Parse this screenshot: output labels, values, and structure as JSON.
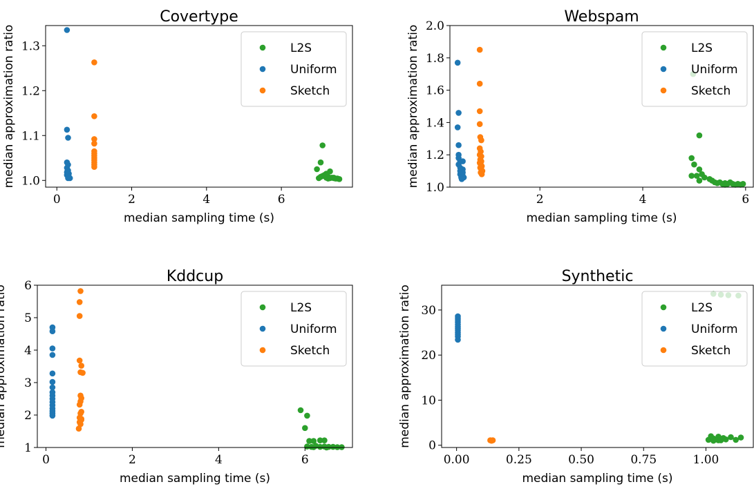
{
  "chart_data": [
    {
      "type": "scatter",
      "title": "Covertype",
      "xlabel": "median sampling time (s)",
      "ylabel": "median approximation ratio",
      "xlim": [
        -0.3,
        7.9
      ],
      "ylim": [
        0.985,
        1.345
      ],
      "xticks": [
        0,
        2,
        4,
        6
      ],
      "yticks": [
        1.0,
        1.1,
        1.2,
        1.3
      ],
      "xtick_labels": [
        "0",
        "2",
        "4",
        "6"
      ],
      "ytick_labels": [
        "1.0",
        "1.1",
        "1.2",
        "1.3"
      ],
      "legend": "top-right",
      "series": [
        {
          "name": "L2S",
          "color": "#2ca02c",
          "points": [
            [
              6.95,
              1.025
            ],
            [
              7.05,
              1.04
            ],
            [
              7.1,
              1.078
            ],
            [
              7.0,
              1.005
            ],
            [
              7.1,
              1.01
            ],
            [
              7.15,
              1.012
            ],
            [
              7.2,
              1.015
            ],
            [
              7.25,
              1.008
            ],
            [
              7.3,
              1.02
            ],
            [
              7.35,
              1.006
            ],
            [
              7.4,
              1.005
            ],
            [
              7.45,
              1.004
            ],
            [
              7.5,
              1.004
            ],
            [
              7.55,
              1.003
            ],
            [
              7.2,
              1.006
            ],
            [
              7.3,
              1.005
            ],
            [
              7.05,
              1.008
            ],
            [
              7.4,
              1.006
            ],
            [
              7.25,
              1.004
            ]
          ]
        },
        {
          "name": "Uniform",
          "color": "#1f77b4",
          "points": [
            [
              0.27,
              1.335
            ],
            [
              0.27,
              1.113
            ],
            [
              0.3,
              1.095
            ],
            [
              0.27,
              1.04
            ],
            [
              0.3,
              1.035
            ],
            [
              0.27,
              1.028
            ],
            [
              0.3,
              1.022
            ],
            [
              0.27,
              1.018
            ],
            [
              0.32,
              1.015
            ],
            [
              0.27,
              1.012
            ],
            [
              0.3,
              1.01
            ],
            [
              0.32,
              1.008
            ],
            [
              0.3,
              1.005
            ],
            [
              0.35,
              1.005
            ],
            [
              0.28,
              1.02
            ]
          ]
        },
        {
          "name": "Sketch",
          "color": "#ff7f0e",
          "points": [
            [
              1.0,
              1.263
            ],
            [
              1.0,
              1.143
            ],
            [
              1.0,
              1.092
            ],
            [
              1.0,
              1.082
            ],
            [
              1.0,
              1.065
            ],
            [
              1.0,
              1.06
            ],
            [
              1.0,
              1.055
            ],
            [
              1.0,
              1.05
            ],
            [
              1.0,
              1.045
            ],
            [
              1.0,
              1.04
            ],
            [
              1.0,
              1.035
            ],
            [
              1.0,
              1.03
            ]
          ]
        }
      ]
    },
    {
      "type": "scatter",
      "title": "Webspam",
      "xlabel": "median sampling time (s)",
      "ylabel": "median approximation ratio",
      "xlim": [
        0.25,
        6.15
      ],
      "ylim": [
        1.0,
        2.0
      ],
      "xticks": [
        2,
        4,
        6
      ],
      "yticks": [
        1.0,
        1.2,
        1.4,
        1.6,
        1.8,
        2.0
      ],
      "xtick_labels": [
        "2",
        "4",
        "6"
      ],
      "ytick_labels": [
        "1.0",
        "1.2",
        "1.4",
        "1.6",
        "1.8",
        "2.0"
      ],
      "legend": "top-right",
      "series": [
        {
          "name": "L2S",
          "color": "#2ca02c",
          "points": [
            [
              4.98,
              1.7
            ],
            [
              4.95,
              1.18
            ],
            [
              5.1,
              1.32
            ],
            [
              5.0,
              1.14
            ],
            [
              4.95,
              1.07
            ],
            [
              5.1,
              1.11
            ],
            [
              5.05,
              1.07
            ],
            [
              5.15,
              1.08
            ],
            [
              5.1,
              1.04
            ],
            [
              5.2,
              1.06
            ],
            [
              5.3,
              1.05
            ],
            [
              5.35,
              1.04
            ],
            [
              5.4,
              1.03
            ],
            [
              5.45,
              1.025
            ],
            [
              5.5,
              1.03
            ],
            [
              5.55,
              1.02
            ],
            [
              5.6,
              1.025
            ],
            [
              5.65,
              1.02
            ],
            [
              5.7,
              1.03
            ],
            [
              5.75,
              1.02
            ],
            [
              5.8,
              1.015
            ],
            [
              5.85,
              1.02
            ],
            [
              5.9,
              1.015
            ],
            [
              5.95,
              1.02
            ],
            [
              5.6,
              1.015
            ]
          ]
        },
        {
          "name": "Uniform",
          "color": "#1f77b4",
          "points": [
            [
              0.4,
              1.77
            ],
            [
              0.42,
              1.46
            ],
            [
              0.4,
              1.37
            ],
            [
              0.42,
              1.26
            ],
            [
              0.42,
              1.2
            ],
            [
              0.42,
              1.18
            ],
            [
              0.45,
              1.16
            ],
            [
              0.5,
              1.16
            ],
            [
              0.42,
              1.14
            ],
            [
              0.45,
              1.12
            ],
            [
              0.5,
              1.11
            ],
            [
              0.45,
              1.1
            ],
            [
              0.5,
              1.09
            ],
            [
              0.45,
              1.08
            ],
            [
              0.5,
              1.07
            ],
            [
              0.47,
              1.06
            ],
            [
              0.52,
              1.06
            ],
            [
              0.48,
              1.05
            ]
          ]
        },
        {
          "name": "Sketch",
          "color": "#ff7f0e",
          "points": [
            [
              0.83,
              1.85
            ],
            [
              0.83,
              1.64
            ],
            [
              0.83,
              1.47
            ],
            [
              0.83,
              1.39
            ],
            [
              0.84,
              1.31
            ],
            [
              0.86,
              1.29
            ],
            [
              0.83,
              1.24
            ],
            [
              0.85,
              1.22
            ],
            [
              0.83,
              1.2
            ],
            [
              0.86,
              1.19
            ],
            [
              0.84,
              1.17
            ],
            [
              0.86,
              1.16
            ],
            [
              0.83,
              1.15
            ],
            [
              0.85,
              1.14
            ],
            [
              0.87,
              1.13
            ],
            [
              0.84,
              1.12
            ],
            [
              0.86,
              1.11
            ],
            [
              0.88,
              1.1
            ],
            [
              0.85,
              1.09
            ],
            [
              0.87,
              1.08
            ]
          ]
        }
      ]
    },
    {
      "type": "scatter",
      "title": "Kddcup",
      "xlabel": "median sampling time (s)",
      "ylabel": "median approximation ratio",
      "xlim": [
        -0.2,
        7.1
      ],
      "ylim": [
        1.0,
        6.0
      ],
      "xticks": [
        0,
        2,
        4,
        6
      ],
      "yticks": [
        1,
        2,
        3,
        4,
        5,
        6
      ],
      "xtick_labels": [
        "0",
        "2",
        "4",
        "6"
      ],
      "ytick_labels": [
        "1",
        "2",
        "3",
        "4",
        "5",
        "6"
      ],
      "legend": "top-right",
      "series": [
        {
          "name": "L2S",
          "color": "#2ca02c",
          "points": [
            [
              5.9,
              2.15
            ],
            [
              6.05,
              1.98
            ],
            [
              6.0,
              1.6
            ],
            [
              6.1,
              1.2
            ],
            [
              6.2,
              1.2
            ],
            [
              6.35,
              1.22
            ],
            [
              6.45,
              1.22
            ],
            [
              6.05,
              1.03
            ],
            [
              6.15,
              1.02
            ],
            [
              6.25,
              1.05
            ],
            [
              6.35,
              1.02
            ],
            [
              6.45,
              1.03
            ],
            [
              6.55,
              1.02
            ],
            [
              6.65,
              1.02
            ],
            [
              6.75,
              1.01
            ],
            [
              6.85,
              1.01
            ],
            [
              6.2,
              1.01
            ],
            [
              6.5,
              1.0
            ]
          ]
        },
        {
          "name": "Uniform",
          "color": "#1f77b4",
          "points": [
            [
              0.15,
              4.7
            ],
            [
              0.15,
              4.58
            ],
            [
              0.15,
              4.05
            ],
            [
              0.15,
              3.85
            ],
            [
              0.15,
              3.28
            ],
            [
              0.15,
              3.02
            ],
            [
              0.15,
              2.85
            ],
            [
              0.15,
              2.7
            ],
            [
              0.15,
              2.6
            ],
            [
              0.15,
              2.5
            ],
            [
              0.15,
              2.4
            ],
            [
              0.15,
              2.3
            ],
            [
              0.15,
              2.2
            ],
            [
              0.15,
              2.12
            ],
            [
              0.15,
              2.05
            ],
            [
              0.15,
              1.98
            ]
          ]
        },
        {
          "name": "Sketch",
          "color": "#ff7f0e",
          "points": [
            [
              0.8,
              5.82
            ],
            [
              0.78,
              5.48
            ],
            [
              0.78,
              5.05
            ],
            [
              0.78,
              3.68
            ],
            [
              0.82,
              3.52
            ],
            [
              0.8,
              3.32
            ],
            [
              0.85,
              3.3
            ],
            [
              0.8,
              2.6
            ],
            [
              0.82,
              2.52
            ],
            [
              0.8,
              2.42
            ],
            [
              0.78,
              2.32
            ],
            [
              0.82,
              2.1
            ],
            [
              0.8,
              2.05
            ],
            [
              0.78,
              1.92
            ],
            [
              0.82,
              1.88
            ],
            [
              0.78,
              1.78
            ],
            [
              0.8,
              1.72
            ],
            [
              0.82,
              1.85
            ],
            [
              0.76,
              1.58
            ]
          ]
        }
      ]
    },
    {
      "type": "scatter",
      "title": "Synthetic",
      "xlabel": "median sampling time (s)",
      "ylabel": "median approximation ratio",
      "xlim": [
        -0.06,
        1.19
      ],
      "ylim": [
        -0.5,
        35.5
      ],
      "xticks": [
        0.0,
        0.25,
        0.5,
        0.75,
        1.0
      ],
      "yticks": [
        0,
        10,
        20,
        30
      ],
      "xtick_labels": [
        "0.00",
        "0.25",
        "0.50",
        "0.75",
        "1.00"
      ],
      "ytick_labels": [
        "0",
        "10",
        "20",
        "30"
      ],
      "legend": "top-right",
      "series": [
        {
          "name": "L2S",
          "color": "#2ca02c",
          "points": [
            [
              1.03,
              33.6
            ],
            [
              1.06,
              33.4
            ],
            [
              1.09,
              33.3
            ],
            [
              1.13,
              33.2
            ],
            [
              1.01,
              1.2
            ],
            [
              1.02,
              2.0
            ],
            [
              1.03,
              1.5
            ],
            [
              1.04,
              1.3
            ],
            [
              1.05,
              1.9
            ],
            [
              1.06,
              1.1
            ],
            [
              1.07,
              1.6
            ],
            [
              1.08,
              1.3
            ],
            [
              1.1,
              1.8
            ],
            [
              1.12,
              1.2
            ],
            [
              1.14,
              1.7
            ],
            [
              1.03,
              1.0
            ],
            [
              1.05,
              1.1
            ]
          ]
        },
        {
          "name": "Uniform",
          "color": "#1f77b4",
          "points": [
            [
              0.005,
              28.6
            ],
            [
              0.005,
              28.2
            ],
            [
              0.005,
              27.8
            ],
            [
              0.005,
              27.3
            ],
            [
              0.005,
              26.8
            ],
            [
              0.005,
              26.3
            ],
            [
              0.005,
              25.9
            ],
            [
              0.005,
              25.5
            ],
            [
              0.005,
              25.0
            ],
            [
              0.005,
              24.6
            ],
            [
              0.005,
              24.1
            ],
            [
              0.005,
              23.4
            ]
          ]
        },
        {
          "name": "Sketch",
          "color": "#ff7f0e",
          "points": [
            [
              0.135,
              1.1
            ],
            [
              0.14,
              1.05
            ],
            [
              0.145,
              1.1
            ],
            [
              0.14,
              1.0
            ]
          ]
        }
      ]
    }
  ]
}
